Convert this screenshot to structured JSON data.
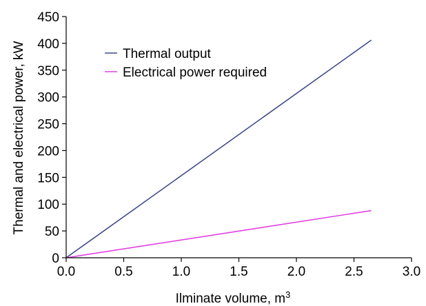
{
  "chart_data": {
    "type": "line",
    "title": "",
    "xlabel": "Ilminate volume, m",
    "xlabel_superscript": "3",
    "ylabel": "Thermal and electrical power, kW",
    "xlim": [
      0,
      3.0
    ],
    "ylim": [
      0,
      450
    ],
    "x_ticks": [
      "0.0",
      "0.5",
      "1.0",
      "1.5",
      "2.0",
      "2.5",
      "3.0"
    ],
    "y_ticks": [
      "0",
      "50",
      "100",
      "150",
      "200",
      "250",
      "300",
      "350",
      "400",
      "450"
    ],
    "grid": false,
    "legend_position": "top-left",
    "series": [
      {
        "name": "Thermal output",
        "color": "#3f4a8a",
        "x": [
          0,
          2.65
        ],
        "y": [
          0,
          406
        ]
      },
      {
        "name": "Electrical power required",
        "color": "#e040e0",
        "x": [
          0,
          2.65
        ],
        "y": [
          0,
          88
        ]
      }
    ]
  }
}
